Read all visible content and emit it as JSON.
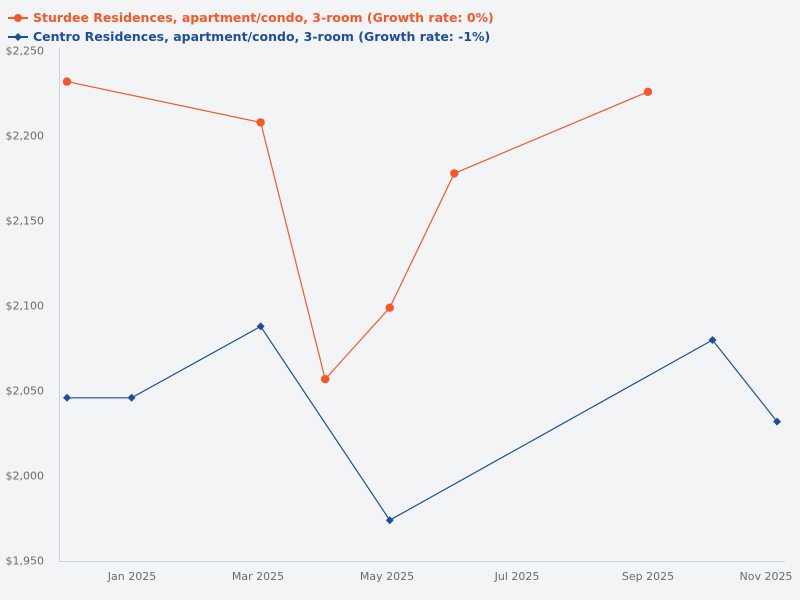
{
  "chart_data": {
    "type": "line",
    "title": "",
    "xlabel": "",
    "ylabel": "",
    "ylim": [
      1950,
      2250
    ],
    "y_ticks": [
      "$2,250",
      "$2,200",
      "$2,150",
      "$2,100",
      "$2,050",
      "$2,000",
      "$1,950"
    ],
    "y_tick_values": [
      2250,
      2200,
      2150,
      2100,
      2050,
      2000,
      1950
    ],
    "x_ticks": [
      "Jan 2025",
      "Mar 2025",
      "May 2025",
      "Jul 2025",
      "Sep 2025",
      "Nov 2025"
    ],
    "grid": false,
    "legend_position": "top-left",
    "series": [
      {
        "name": "Sturdee Residences, apartment/condo, 3-room (Growth rate: 0%)",
        "color": "#f4582a",
        "marker": "circle",
        "x": [
          "Dec 2024",
          "Mar 2025",
          "Apr 2025",
          "May 2025",
          "Jun 2025",
          "Sep 2025"
        ],
        "values": [
          2232,
          2208,
          2057,
          2099,
          2178,
          2226
        ]
      },
      {
        "name": "Centro Residences, apartment/condo, 3-room (Growth rate: -1%)",
        "color": "#1f4e9c",
        "marker": "diamond",
        "x": [
          "Dec 2024",
          "Jan 2025",
          "Mar 2025",
          "May 2025",
          "Oct 2025",
          "Nov 2025"
        ],
        "values": [
          2046,
          2046,
          2088,
          1974,
          2080,
          2032
        ]
      }
    ]
  },
  "legend": {
    "items": [
      {
        "label": "Sturdee Residences, apartment/condo, 3-room (Growth rate: 0%)",
        "color": "#f4582a"
      },
      {
        "label": "Centro Residences, apartment/condo, 3-room (Growth rate: -1%)",
        "color": "#1f4e9c"
      }
    ]
  },
  "colors": {
    "axis": "#c9d3e6",
    "tick_text": "#6b6b6b",
    "background": "#f3f4f6"
  }
}
